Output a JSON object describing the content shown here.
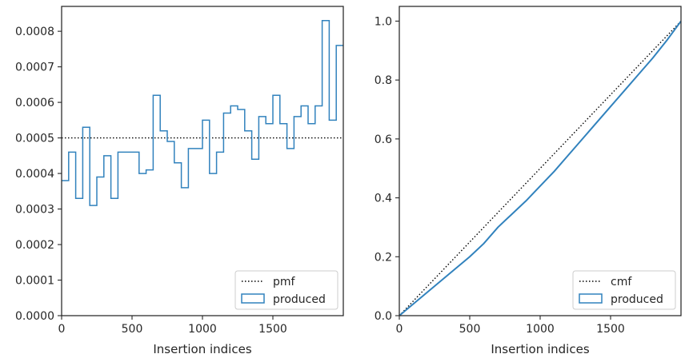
{
  "chart_data": [
    {
      "type": "histogram-step",
      "xlabel": "Insertion indices",
      "ylabel": "",
      "xlim": [
        0,
        2000
      ],
      "ylim": [
        0,
        0.00087
      ],
      "xticks": [
        0,
        500,
        1000,
        1500
      ],
      "xtick_labels": [
        "0",
        "500",
        "1000",
        "1500"
      ],
      "yticks": [
        0,
        0.0001,
        0.0002,
        0.0003,
        0.0004,
        0.0005,
        0.0006,
        0.0007,
        0.0008
      ],
      "ytick_labels": [
        "0.0000",
        "0.0001",
        "0.0002",
        "0.0003",
        "0.0004",
        "0.0005",
        "0.0006",
        "0.0007",
        "0.0008"
      ],
      "legend_position": "lower-right",
      "series": [
        {
          "name": "pmf",
          "style": "dotted",
          "color": "#000000",
          "x": [
            0,
            2000
          ],
          "y": [
            0.0005,
            0.0005
          ]
        },
        {
          "name": "produced",
          "style": "step",
          "color": "#3182bd",
          "bin_edges": [
            0,
            50,
            100,
            150,
            200,
            250,
            300,
            350,
            400,
            450,
            500,
            550,
            600,
            650,
            700,
            750,
            800,
            850,
            900,
            950,
            1000,
            1050,
            1100,
            1150,
            1200,
            1250,
            1300,
            1350,
            1400,
            1450,
            1500,
            1550,
            1600,
            1650,
            1700,
            1750,
            1800,
            1850,
            1900,
            1950,
            2000
          ],
          "values": [
            0.00038,
            0.00046,
            0.00033,
            0.00053,
            0.00031,
            0.00039,
            0.00045,
            0.00033,
            0.00046,
            0.00046,
            0.00046,
            0.0004,
            0.00041,
            0.00062,
            0.00052,
            0.00049,
            0.00043,
            0.00036,
            0.00047,
            0.00047,
            0.00055,
            0.0004,
            0.00046,
            0.00057,
            0.00059,
            0.00058,
            0.00052,
            0.00044,
            0.00056,
            0.00054,
            0.00062,
            0.00054,
            0.00047,
            0.00056,
            0.00059,
            0.00054,
            0.00059,
            0.00083,
            0.00055,
            0.00076
          ]
        }
      ]
    },
    {
      "type": "line",
      "xlabel": "Insertion indices",
      "ylabel": "",
      "xlim": [
        0,
        2000
      ],
      "ylim": [
        0,
        1.05
      ],
      "xticks": [
        0,
        500,
        1000,
        1500
      ],
      "xtick_labels": [
        "0",
        "500",
        "1000",
        "1500"
      ],
      "yticks": [
        0,
        0.2,
        0.4,
        0.6,
        0.8,
        1.0
      ],
      "ytick_labels": [
        "0.0",
        "0.2",
        "0.4",
        "0.6",
        "0.8",
        "1.0"
      ],
      "legend_position": "lower-right",
      "series": [
        {
          "name": "cmf",
          "style": "dotted",
          "color": "#000000",
          "x": [
            0,
            2000
          ],
          "y": [
            0,
            1.0
          ]
        },
        {
          "name": "produced",
          "style": "solid",
          "color": "#3182bd",
          "x": [
            0,
            100,
            200,
            300,
            400,
            500,
            600,
            700,
            800,
            900,
            1000,
            1100,
            1200,
            1300,
            1400,
            1500,
            1600,
            1700,
            1800,
            1900,
            2000
          ],
          "y": [
            0,
            0.04,
            0.08,
            0.12,
            0.16,
            0.2,
            0.245,
            0.3,
            0.345,
            0.39,
            0.44,
            0.49,
            0.545,
            0.6,
            0.655,
            0.71,
            0.765,
            0.82,
            0.875,
            0.935,
            1.0
          ]
        }
      ]
    }
  ]
}
